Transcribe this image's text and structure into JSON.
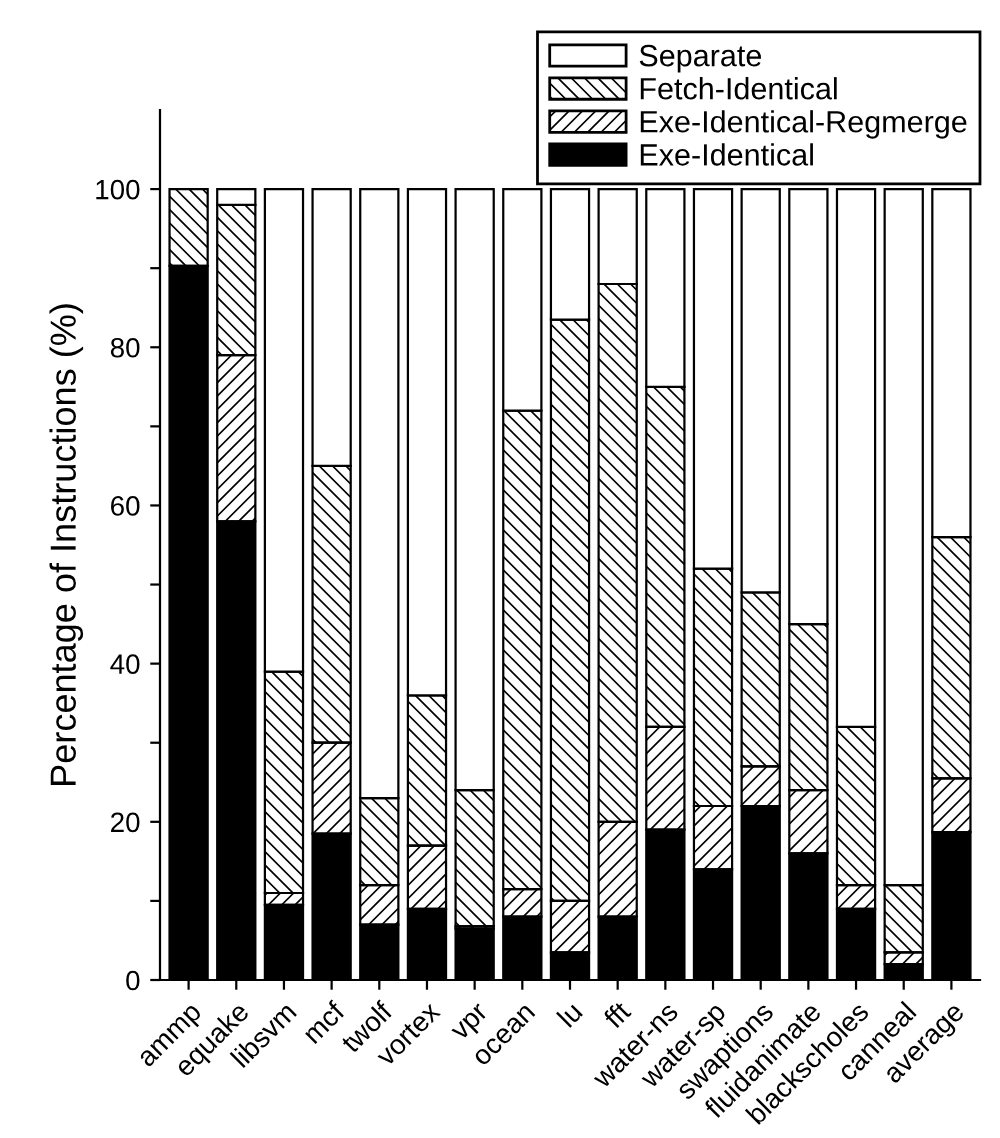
{
  "chart_data": {
    "type": "bar",
    "stacked": true,
    "ylabel": "Percentage of Instructions (%)",
    "categories": [
      "ammp",
      "equake",
      "libsvm",
      "mcf",
      "twolf",
      "vortex",
      "vpr",
      "ocean",
      "lu",
      "fft",
      "water-ns",
      "water-sp",
      "swaptions",
      "fluidanimate",
      "blackscholes",
      "canneal",
      "average"
    ],
    "series": [
      {
        "name": "Exe-Identical",
        "color": "#000000",
        "values": [
          90.3,
          58,
          9.5,
          18.5,
          7,
          9,
          6.5,
          8,
          3.5,
          8,
          19,
          14,
          22,
          16,
          9,
          2,
          18.7
        ]
      },
      {
        "name": "Exe-Identical-Regmerge",
        "color": "#000000",
        "values": [
          null,
          21,
          1.5,
          11.5,
          5,
          8,
          0.3,
          3.5,
          6.5,
          12,
          13,
          8,
          5,
          8,
          3,
          1.5,
          6.8
        ]
      },
      {
        "name": "Fetch-Identical",
        "color": "#000000",
        "values": [
          9.7,
          19,
          28,
          35,
          11,
          19,
          17.2,
          60.5,
          73.5,
          68,
          43,
          30,
          22,
          21,
          20,
          8.5,
          30.5
        ]
      },
      {
        "name": "Separate",
        "color": "#ffffff",
        "values": [
          null,
          2,
          61,
          35,
          77,
          64,
          76,
          28,
          16.5,
          12,
          25,
          48,
          51,
          55,
          68,
          88,
          44
        ]
      }
    ],
    "ylim": [
      0,
      110
    ],
    "yticks": [
      0,
      {
        "value": 10,
        "label": null
      },
      20,
      {
        "value": 30,
        "label": null
      },
      40,
      {
        "value": 50,
        "label": null
      },
      60,
      {
        "value": 70,
        "label": null
      },
      80,
      {
        "value": 90,
        "label": null
      },
      100
    ],
    "grid": false,
    "legend": "top right"
  }
}
